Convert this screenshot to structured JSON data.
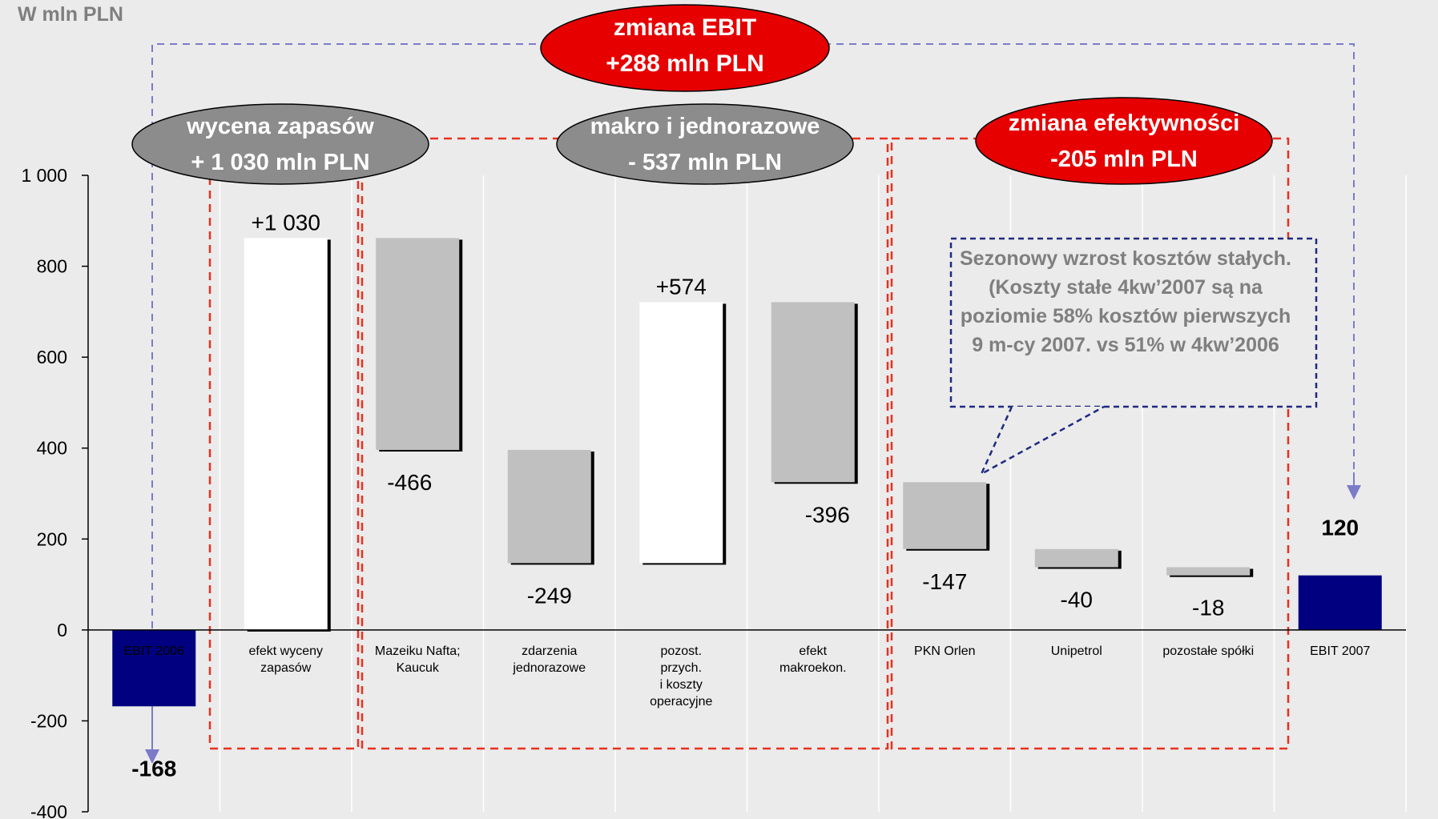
{
  "unit_label": "W mln PLN",
  "colors": {
    "background_plot": "#ebebeb",
    "endpoint_bar": "#000080",
    "positive_bar": "#ffffff",
    "negative_bar": "#c0c0c0",
    "red_bracket": "#e8311f",
    "blue_bracket": "#7b7bc8",
    "grey_ellipse": "#8c8c8c",
    "red_ellipse": "#e60000",
    "callout_border": "#1f2a80"
  },
  "chart_data": {
    "type": "bar",
    "subtype": "waterfall",
    "ylim": [
      -400,
      1000
    ],
    "yticks": [
      -400,
      -200,
      0,
      200,
      400,
      600,
      800,
      1000
    ],
    "ytick_labels": [
      "-400",
      "-200",
      "0",
      "200",
      "400",
      "600",
      "800",
      "1 000"
    ],
    "grid": "vertical",
    "categories": [
      "EBIT 2006",
      "efekt wyceny zapasów",
      "Mazeiku Nafta; Kaucuk",
      "zdarzenia jednorazowe",
      "pozost. przych. i koszty operacyjne",
      "efekt makroekon.",
      "PKN Orlen",
      "Unipetrol",
      "pozostałe spółki",
      "EBIT 2007"
    ],
    "category_lines": [
      [
        "EBIT 2006"
      ],
      [
        "efekt wyceny",
        "zapasów"
      ],
      [
        "Mazeiku Nafta;",
        "Kaucuk"
      ],
      [
        "zdarzenia",
        "jednorazowe"
      ],
      [
        "pozost.",
        "przych.",
        "i koszty",
        "operacyjne"
      ],
      [
        "efekt",
        "makroekon."
      ],
      [
        "PKN Orlen"
      ],
      [
        "Unipetrol"
      ],
      [
        "pozostałe spółki"
      ],
      [
        "EBIT 2007"
      ]
    ],
    "bars": [
      {
        "kind": "total",
        "bottom": 0,
        "top": -168,
        "label": "-168"
      },
      {
        "kind": "increase",
        "bottom": 0,
        "top": 862,
        "label": "+1 030"
      },
      {
        "kind": "decrease",
        "bottom": 396,
        "top": 862,
        "label": "-466"
      },
      {
        "kind": "decrease",
        "bottom": 147,
        "top": 396,
        "label": "-249"
      },
      {
        "kind": "increase",
        "bottom": 147,
        "top": 721,
        "label": "+574"
      },
      {
        "kind": "decrease",
        "bottom": 325,
        "top": 721,
        "label": "-396"
      },
      {
        "kind": "decrease",
        "bottom": 178,
        "top": 325,
        "label": "-147"
      },
      {
        "kind": "decrease",
        "bottom": 138,
        "top": 178,
        "label": "-40"
      },
      {
        "kind": "decrease",
        "bottom": 120,
        "top": 138,
        "label": "-18"
      },
      {
        "kind": "total",
        "bottom": 0,
        "top": 120,
        "label": "120"
      }
    ]
  },
  "groups": [
    {
      "id": "wycena",
      "line1": "wycena zapasów",
      "line2": "+ 1 030 mln PLN",
      "style": "grey"
    },
    {
      "id": "makro",
      "line1": "makro i jednorazowe",
      "line2": "- 537 mln PLN",
      "style": "grey"
    },
    {
      "id": "efektywnosc",
      "line1": "zmiana efektywności",
      "line2": "-205 mln PLN",
      "style": "red"
    }
  ],
  "ebit_change": {
    "line1": "zmiana EBIT",
    "line2": "+288 mln PLN"
  },
  "callout": {
    "text": "Sezonowy wzrost kosztów stałych. (Koszty stałe 4kw’2007 są na poziomie 58% kosztów pierwszych 9 m-cy 2007. vs 51% w 4kw’2006"
  }
}
